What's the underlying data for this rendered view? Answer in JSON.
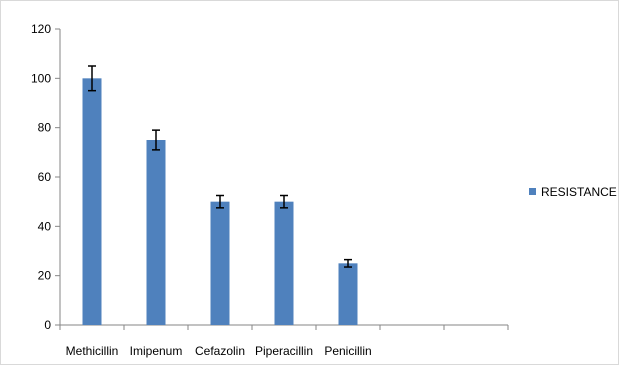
{
  "chart_data": {
    "type": "bar",
    "categories": [
      "Methicillin",
      "Imipenum",
      "Cefazolin",
      "Piperacillin",
      "Penicillin",
      "",
      ""
    ],
    "series": [
      {
        "name": "RESISTANCE",
        "values": [
          100,
          75,
          50,
          50,
          25,
          null,
          null
        ],
        "error": [
          5,
          4,
          2.5,
          2.5,
          1.5,
          null,
          null
        ]
      }
    ],
    "ylim": [
      0,
      120
    ],
    "yticks": [
      0,
      20,
      40,
      60,
      80,
      100,
      120
    ],
    "grid": false,
    "legend": "right",
    "colors": {
      "bar": "#4F81BD",
      "axis": "#868686",
      "error": "#000000"
    }
  }
}
